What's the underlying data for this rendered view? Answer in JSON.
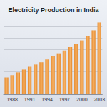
{
  "chart_data": {
    "type": "bar",
    "title": "Electricity Production in India",
    "categories": [
      null,
      "1988",
      null,
      null,
      "1991",
      null,
      null,
      "1994",
      null,
      null,
      "1997",
      null,
      null,
      "2000",
      null,
      null,
      "2003"
    ],
    "values": [
      150,
      170,
      195,
      220,
      245,
      265,
      285,
      310,
      340,
      365,
      390,
      420,
      450,
      480,
      520,
      570,
      640
    ],
    "color": "#e58a2e",
    "ylim": [
      0,
      700
    ],
    "yticks": [
      0,
      100,
      200,
      300,
      400,
      500,
      600,
      700
    ],
    "grid": true,
    "tick_labels": "x"
  }
}
